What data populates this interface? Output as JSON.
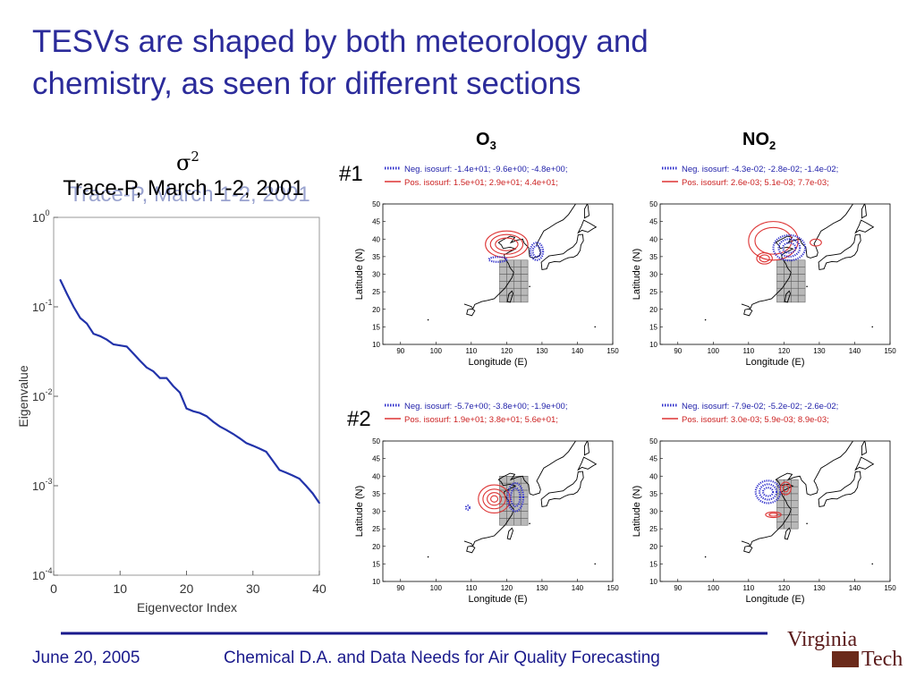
{
  "slide": {
    "title_line1": "TESVs are shaped by both meteorology and",
    "title_line2": "chemistry, as seen for different sections",
    "footer_date": "June 20, 2005",
    "footer_text": "Chemical D.A. and Data Needs for Air Quality Forecasting",
    "logo_line1": "Virginia",
    "logo_line2": "Tech",
    "colors": {
      "title": "#2b2b9a",
      "footer": "#1a1a8c",
      "rule": "#1a1a8c",
      "logo": "#5a1a1a"
    }
  },
  "left_panel": {
    "symbol": "σ",
    "symbol_sup": "2",
    "subtitle": "Trace-P, March 1-2, 2001"
  },
  "column_labels": {
    "o3": "O",
    "o3_sub": "3",
    "no2": "NO",
    "no2_sub": "2"
  },
  "row_labels": [
    "#1",
    "#2"
  ],
  "maps": [
    {
      "neg": "Neg. isosurf: -1.4e+01; -9.6e+00; -4.8e+00;",
      "pos": "Pos. isosurf: 1.5e+01;  2.9e+01;  4.4e+01;"
    },
    {
      "neg": "Neg. isosurf: -4.3e-02; -2.8e-02; -1.4e-02;",
      "pos": "Pos. isosurf: 2.6e-03;  5.1e-03;  7.7e-03;"
    },
    {
      "neg": "Neg. isosurf: -5.7e+00; -3.8e+00; -1.9e+00;",
      "pos": "Pos. isosurf: 1.9e+01;  3.8e+01;  5.6e+01;"
    },
    {
      "neg": "Neg. isosurf: -7.9e-02; -5.2e-02; -2.6e-02;",
      "pos": "Pos. isosurf: 3.0e-03;  5.9e-03;  8.9e-03;"
    }
  ],
  "map_axes": {
    "xlabel": "Longitude (E)",
    "ylabel": "Latitude (N)",
    "xticks": [
      "90",
      "100",
      "110",
      "120",
      "130",
      "140",
      "150"
    ],
    "yticks": [
      "50",
      "45",
      "40",
      "35",
      "30",
      "25",
      "20",
      "15",
      "10"
    ],
    "xlim": [
      85,
      150
    ],
    "ylim": [
      10,
      50
    ]
  },
  "chart_data": {
    "type": "line",
    "xlabel": "Eigenvector Index",
    "ylabel": "Eigenvalue",
    "yscale": "log",
    "xlim": [
      0,
      40
    ],
    "ylim": [
      0.0001,
      1
    ],
    "xticks": [
      "0",
      "10",
      "20",
      "30",
      "40"
    ],
    "ytick_base": "10",
    "ytick_exps": [
      "0",
      "-1",
      "-2",
      "-3",
      "-4"
    ],
    "line_color": "#2233aa",
    "series": [
      {
        "x": [
          1,
          2,
          3,
          4,
          5,
          6,
          7,
          8,
          9,
          10,
          11,
          12,
          13,
          14,
          15,
          16,
          17,
          18,
          19,
          20,
          21,
          22,
          23,
          24,
          25,
          26,
          27,
          28,
          29,
          30,
          31,
          32,
          33,
          34,
          35,
          36,
          37,
          38,
          39,
          40
        ],
        "values": [
          0.2,
          0.14,
          0.1,
          0.075,
          0.065,
          0.05,
          0.047,
          0.043,
          0.038,
          0.037,
          0.036,
          0.03,
          0.025,
          0.021,
          0.019,
          0.016,
          0.016,
          0.013,
          0.011,
          0.0073,
          0.0068,
          0.0065,
          0.006,
          0.0052,
          0.0046,
          0.0042,
          0.0038,
          0.0034,
          0.003,
          0.0028,
          0.0026,
          0.0024,
          0.0019,
          0.0015,
          0.0014,
          0.0013,
          0.0012,
          0.001,
          0.00082,
          0.00064
        ]
      }
    ]
  }
}
